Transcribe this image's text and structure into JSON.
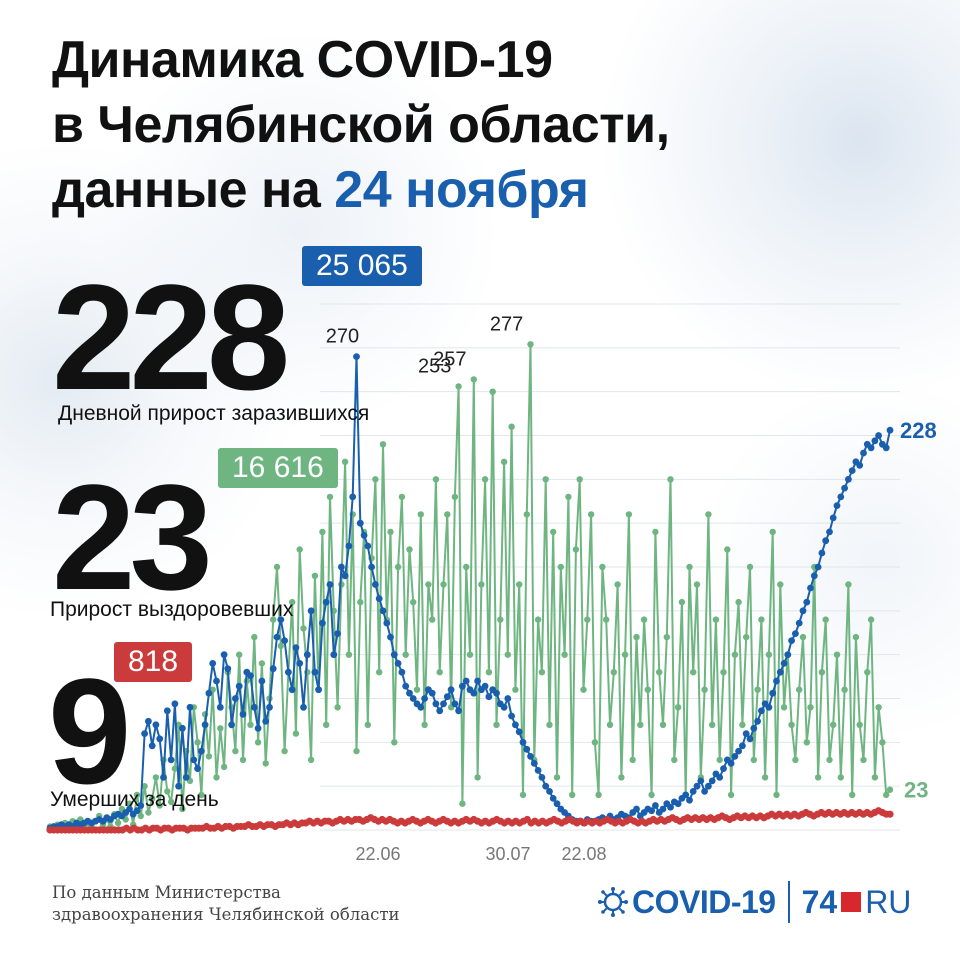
{
  "title": {
    "line1": "Динамика COVID-19",
    "line2": "в Челябинской области,",
    "line3_prefix": "данные на ",
    "line3_date": "24 ноября"
  },
  "stats": {
    "cases": {
      "value": "228",
      "total": "25 065",
      "label": "Дневной прирост заразившихся",
      "color": "#1a5fae"
    },
    "recovered": {
      "value": "23",
      "total": "16 616",
      "label": "Прирост выздоровевших",
      "color": "#6fb582"
    },
    "deaths": {
      "value": "9",
      "total": "818",
      "label": "Умерших за день",
      "color": "#cc3b3b"
    }
  },
  "footer": {
    "source_line1": "По данным Министерства",
    "source_line2": "здравоохранения Челябинской области",
    "logo_covid": "COVID-19",
    "logo_74": "74",
    "logo_ru": "RU",
    "logo_icon": "virus-icon"
  },
  "chart_data": {
    "type": "line",
    "title": "",
    "xlabel": "",
    "ylabel": "",
    "ylim": [
      0,
      300
    ],
    "grid": true,
    "tick_labels": [
      "22.06",
      "30.07",
      "22.08"
    ],
    "peak_labels": [
      "270",
      "253",
      "257",
      "277"
    ],
    "end_labels": {
      "cases": "228",
      "recovered": "23"
    },
    "series": [
      {
        "name": "Дневной прирост заразившихся",
        "color": "#1a5fae",
        "values": [
          1,
          2,
          2,
          3,
          2,
          3,
          2,
          4,
          3,
          4,
          5,
          4,
          5,
          6,
          5,
          7,
          6,
          8,
          9,
          8,
          10,
          12,
          9,
          11,
          14,
          55,
          62,
          48,
          60,
          52,
          30,
          68,
          40,
          72,
          25,
          58,
          30,
          70,
          40,
          35,
          45,
          60,
          78,
          95,
          85,
          70,
          100,
          92,
          60,
          75,
          82,
          66,
          90,
          88,
          70,
          58,
          85,
          62,
          70,
          92,
          110,
          120,
          108,
          90,
          80,
          104,
          95,
          70,
          100,
          125,
          90,
          80,
          118,
          130,
          140,
          100,
          112,
          150,
          145,
          162,
          190,
          270,
          175,
          168,
          162,
          150,
          140,
          132,
          125,
          118,
          110,
          100,
          95,
          90,
          82,
          78,
          75,
          72,
          70,
          75,
          80,
          78,
          72,
          68,
          72,
          76,
          80,
          72,
          68,
          82,
          85,
          80,
          78,
          85,
          80,
          82,
          76,
          80,
          78,
          72,
          70,
          75,
          65,
          60,
          56,
          50,
          46,
          42,
          38,
          34,
          30,
          25,
          22,
          18,
          15,
          12,
          10,
          8,
          6,
          5,
          5,
          4,
          6,
          5,
          5,
          6,
          7,
          6,
          8,
          6,
          7,
          9,
          8,
          7,
          10,
          12,
          8,
          10,
          12,
          11,
          14,
          10,
          12,
          15,
          13,
          16,
          15,
          18,
          20,
          17,
          22,
          25,
          28,
          22,
          25,
          28,
          32,
          30,
          35,
          40,
          38,
          42,
          45,
          48,
          55,
          52,
          58,
          62,
          68,
          72,
          70,
          78,
          85,
          90,
          95,
          100,
          108,
          112,
          118,
          125,
          130,
          138,
          145,
          150,
          158,
          165,
          170,
          178,
          185,
          190,
          195,
          200,
          205,
          210,
          208,
          215,
          220,
          218,
          222,
          225,
          220,
          218,
          228
        ]
      },
      {
        "name": "Прирост выздоровевших",
        "color": "#6fb582",
        "values": [
          2,
          0,
          3,
          1,
          4,
          2,
          5,
          1,
          6,
          3,
          4,
          2,
          5,
          8,
          3,
          6,
          2,
          9,
          4,
          12,
          6,
          15,
          3,
          20,
          8,
          25,
          10,
          18,
          30,
          14,
          40,
          22,
          16,
          35,
          60,
          12,
          45,
          28,
          70,
          50,
          20,
          66,
          42,
          80,
          30,
          58,
          36,
          90,
          70,
          45,
          100,
          40,
          85,
          60,
          110,
          50,
          95,
          38,
          75,
          120,
          150,
          105,
          45,
          90,
          130,
          55,
          160,
          115,
          90,
          40,
          145,
          80,
          170,
          60,
          190,
          125,
          70,
          140,
          210,
          100,
          180,
          45,
          130,
          170,
          60,
          155,
          200,
          90,
          220,
          120,
          170,
          50,
          150,
          190,
          100,
          160,
          130,
          80,
          180,
          60,
          140,
          120,
          200,
          90,
          140,
          180,
          70,
          190,
          253,
          15,
          150,
          100,
          257,
          30,
          140,
          200,
          90,
          250,
          60,
          120,
          210,
          100,
          230,
          80,
          140,
          20,
          180,
          277,
          40,
          120,
          90,
          200,
          60,
          170,
          30,
          150,
          100,
          190,
          20,
          160,
          200,
          80,
          120,
          180,
          50,
          20,
          150,
          120,
          60,
          90,
          140,
          30,
          100,
          180,
          40,
          110,
          60,
          120,
          80,
          20,
          170,
          90,
          60,
          110,
          200,
          40,
          70,
          130,
          20,
          150,
          90,
          140,
          30,
          80,
          180,
          60,
          120,
          40,
          90,
          160,
          20,
          100,
          130,
          60,
          110,
          150,
          40,
          80,
          120,
          30,
          100,
          170,
          20,
          140,
          70,
          100,
          60,
          40,
          80,
          110,
          50,
          70,
          150,
          30,
          90,
          120,
          40,
          60,
          100,
          30,
          80,
          140,
          20,
          110,
          60,
          40,
          90,
          120,
          30,
          70,
          50,
          20,
          23
        ]
      },
      {
        "name": "Умерших за день",
        "color": "#cc3b3b",
        "values": [
          0,
          0,
          0,
          0,
          0,
          0,
          0,
          0,
          0,
          0,
          0,
          0,
          0,
          0,
          0,
          0,
          0,
          0,
          0,
          0,
          1,
          0,
          1,
          0,
          0,
          1,
          0,
          1,
          1,
          0,
          1,
          1,
          0,
          1,
          1,
          1,
          0,
          1,
          1,
          1,
          1,
          2,
          1,
          1,
          2,
          1,
          2,
          2,
          1,
          2,
          2,
          2,
          3,
          2,
          2,
          3,
          2,
          3,
          3,
          2,
          3,
          3,
          4,
          3,
          4,
          3,
          4,
          4,
          5,
          4,
          5,
          4,
          5,
          5,
          4,
          5,
          6,
          5,
          6,
          5,
          6,
          6,
          5,
          6,
          7,
          6,
          5,
          6,
          5,
          6,
          5,
          4,
          5,
          4,
          5,
          6,
          5,
          4,
          5,
          6,
          5,
          4,
          5,
          6,
          5,
          4,
          5,
          4,
          5,
          6,
          5,
          6,
          5,
          4,
          5,
          4,
          5,
          6,
          5,
          4,
          5,
          4,
          5,
          4,
          5,
          6,
          4,
          5,
          4,
          5,
          4,
          5,
          6,
          5,
          4,
          5,
          6,
          5,
          4,
          5,
          4,
          5,
          4,
          5,
          4,
          5,
          6,
          5,
          4,
          5,
          4,
          5,
          6,
          5,
          4,
          5,
          4,
          5,
          6,
          5,
          6,
          5,
          6,
          7,
          6,
          5,
          6,
          7,
          6,
          7,
          6,
          7,
          6,
          7,
          6,
          7,
          8,
          7,
          6,
          7,
          8,
          7,
          8,
          7,
          8,
          7,
          8,
          7,
          8,
          9,
          8,
          9,
          8,
          9,
          8,
          9,
          8,
          9,
          10,
          9,
          8,
          9,
          10,
          9,
          10,
          9,
          10,
          9,
          10,
          9,
          10,
          9,
          10,
          9,
          10,
          9,
          10,
          11,
          10,
          9,
          9
        ]
      }
    ]
  }
}
